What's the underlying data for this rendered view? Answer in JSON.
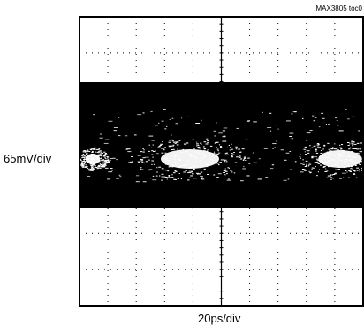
{
  "figure_id": "MAX3805 toc0",
  "chart_data": {
    "type": "eye-diagram",
    "ylabel": "65mV/div",
    "xlabel": "20ps/div",
    "grid": true,
    "x_divisions": 10,
    "y_divisions": 8,
    "eye_openings_visible": 2,
    "colors": {
      "background": "#ffffff",
      "trace": "#000000",
      "eye": "#ffffff"
    }
  }
}
